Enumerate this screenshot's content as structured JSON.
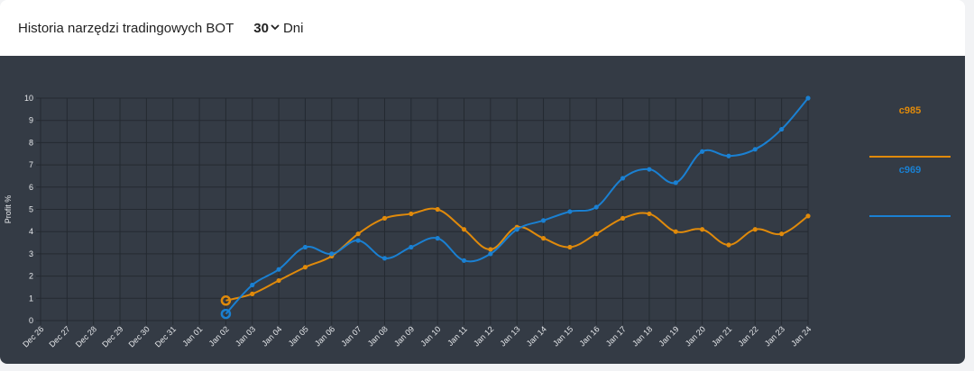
{
  "header": {
    "title": "Historia narzędzi tradingowych BOT",
    "period_value": "30",
    "period_unit": "Dni"
  },
  "chart_data": {
    "type": "line",
    "ylabel": "Profit %",
    "xlabel": "",
    "ylim": [
      0,
      10
    ],
    "yticks": [
      0,
      1,
      2,
      3,
      4,
      5,
      6,
      7,
      8,
      9,
      10
    ],
    "grid": true,
    "legend_position": "right",
    "categories": [
      "Dec 26",
      "Dec 27",
      "Dec 28",
      "Dec 29",
      "Dec 30",
      "Dec 31",
      "Jan 01",
      "Jan 02",
      "Jan 03",
      "Jan 04",
      "Jan 05",
      "Jan 06",
      "Jan 07",
      "Jan 08",
      "Jan 09",
      "Jan 10",
      "Jan 11",
      "Jan 12",
      "Jan 13",
      "Jan 14",
      "Jan 15",
      "Jan 16",
      "Jan 17",
      "Jan 18",
      "Jan 19",
      "Jan 20",
      "Jan 21",
      "Jan 22",
      "Jan 23",
      "Jan 24"
    ],
    "series": [
      {
        "name": "c985",
        "color": "#e08a0b",
        "values": [
          null,
          null,
          null,
          null,
          null,
          null,
          null,
          0.9,
          1.2,
          1.8,
          2.4,
          2.9,
          3.9,
          4.6,
          4.8,
          5.0,
          4.1,
          3.2,
          4.2,
          3.7,
          3.3,
          3.9,
          4.6,
          4.8,
          4.0,
          4.1,
          3.4,
          4.1,
          3.9,
          4.7
        ]
      },
      {
        "name": "c969",
        "color": "#1a80d2",
        "values": [
          null,
          null,
          null,
          null,
          null,
          null,
          null,
          0.3,
          1.6,
          2.3,
          3.3,
          3.0,
          3.6,
          2.8,
          3.3,
          3.7,
          2.7,
          3.0,
          4.1,
          4.5,
          4.9,
          5.1,
          6.4,
          6.8,
          6.2,
          7.6,
          7.4,
          7.7,
          8.6,
          10.0
        ]
      }
    ]
  }
}
